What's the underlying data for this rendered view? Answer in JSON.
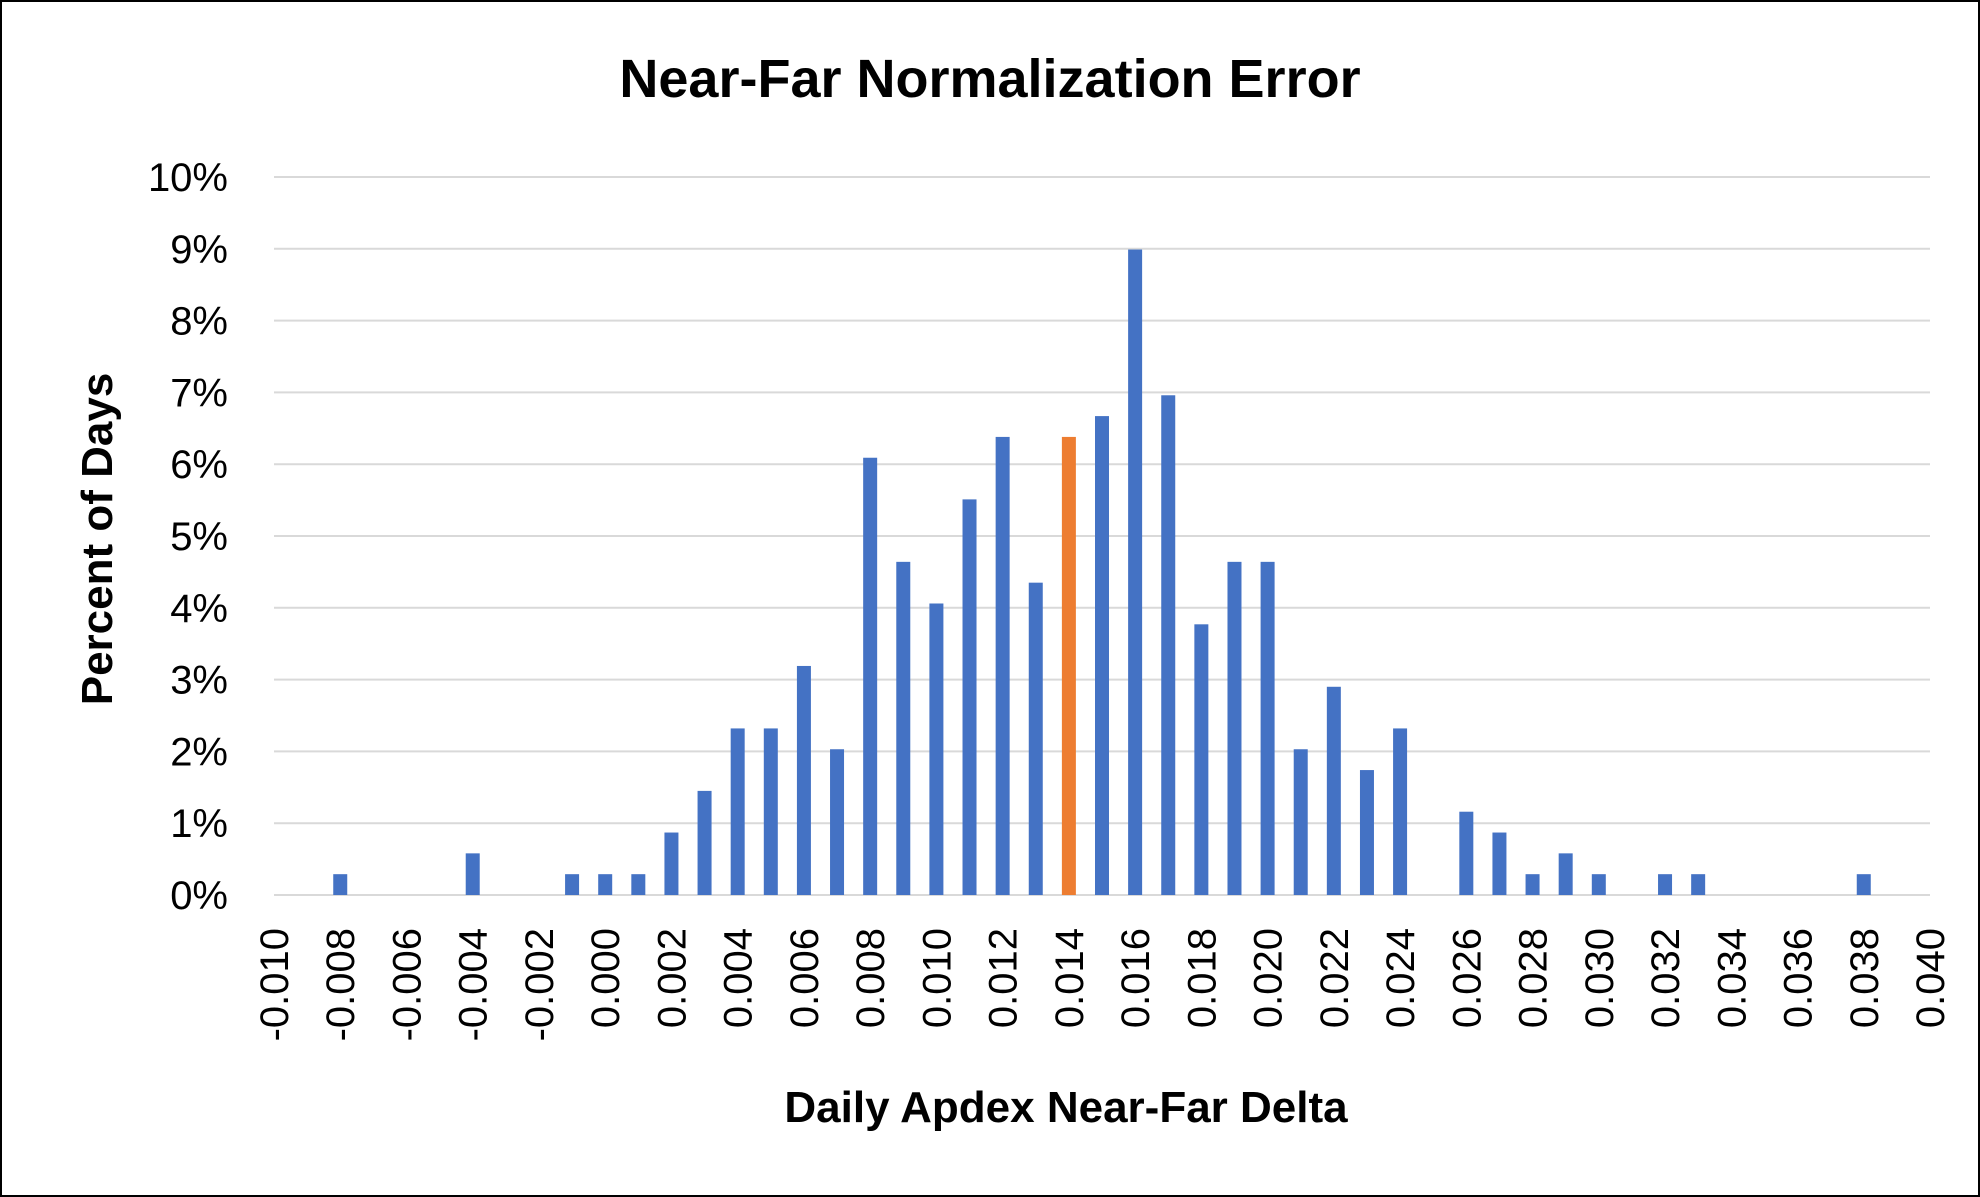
{
  "chart_data": {
    "type": "bar",
    "title": "Near-Far Normalization Error",
    "xlabel": "Daily Apdex Near-Far Delta",
    "ylabel": "Percent of Days",
    "xlim": [
      -0.01,
      0.04
    ],
    "ylim": [
      0,
      10
    ],
    "x_tick_labels": [
      "-0.010",
      "-0.008",
      "-0.006",
      "-0.004",
      "-0.002",
      "0.000",
      "0.002",
      "0.004",
      "0.006",
      "0.008",
      "0.010",
      "0.012",
      "0.014",
      "0.016",
      "0.018",
      "0.020",
      "0.022",
      "0.024",
      "0.026",
      "0.028",
      "0.030",
      "0.032",
      "0.034",
      "0.036",
      "0.038",
      "0.040"
    ],
    "y_tick_labels": [
      "0%",
      "1%",
      "2%",
      "3%",
      "4%",
      "5%",
      "6%",
      "7%",
      "8%",
      "9%",
      "10%"
    ],
    "grid": true,
    "legend": "none",
    "colors": {
      "bar": "#4472C4",
      "highlight": "#ED7D31",
      "grid": "#D9D9D9"
    },
    "highlight_x": 0.014,
    "points": [
      {
        "x": -0.008,
        "y": 0.29
      },
      {
        "x": -0.004,
        "y": 0.58
      },
      {
        "x": -0.001,
        "y": 0.29
      },
      {
        "x": 0.0,
        "y": 0.29
      },
      {
        "x": 0.001,
        "y": 0.29
      },
      {
        "x": 0.002,
        "y": 0.87
      },
      {
        "x": 0.003,
        "y": 1.45
      },
      {
        "x": 0.004,
        "y": 2.32
      },
      {
        "x": 0.005,
        "y": 2.32
      },
      {
        "x": 0.006,
        "y": 3.19
      },
      {
        "x": 0.007,
        "y": 2.03
      },
      {
        "x": 0.008,
        "y": 6.09
      },
      {
        "x": 0.009,
        "y": 4.64
      },
      {
        "x": 0.01,
        "y": 4.06
      },
      {
        "x": 0.011,
        "y": 5.51
      },
      {
        "x": 0.012,
        "y": 6.38
      },
      {
        "x": 0.013,
        "y": 4.35
      },
      {
        "x": 0.014,
        "y": 6.38
      },
      {
        "x": 0.015,
        "y": 6.67
      },
      {
        "x": 0.016,
        "y": 8.99
      },
      {
        "x": 0.017,
        "y": 6.96
      },
      {
        "x": 0.018,
        "y": 3.77
      },
      {
        "x": 0.019,
        "y": 4.64
      },
      {
        "x": 0.02,
        "y": 4.64
      },
      {
        "x": 0.021,
        "y": 2.03
      },
      {
        "x": 0.022,
        "y": 2.9
      },
      {
        "x": 0.023,
        "y": 1.74
      },
      {
        "x": 0.024,
        "y": 2.32
      },
      {
        "x": 0.026,
        "y": 1.16
      },
      {
        "x": 0.027,
        "y": 0.87
      },
      {
        "x": 0.028,
        "y": 0.29
      },
      {
        "x": 0.029,
        "y": 0.58
      },
      {
        "x": 0.03,
        "y": 0.29
      },
      {
        "x": 0.032,
        "y": 0.29
      },
      {
        "x": 0.033,
        "y": 0.29
      },
      {
        "x": 0.038,
        "y": 0.29
      }
    ]
  }
}
